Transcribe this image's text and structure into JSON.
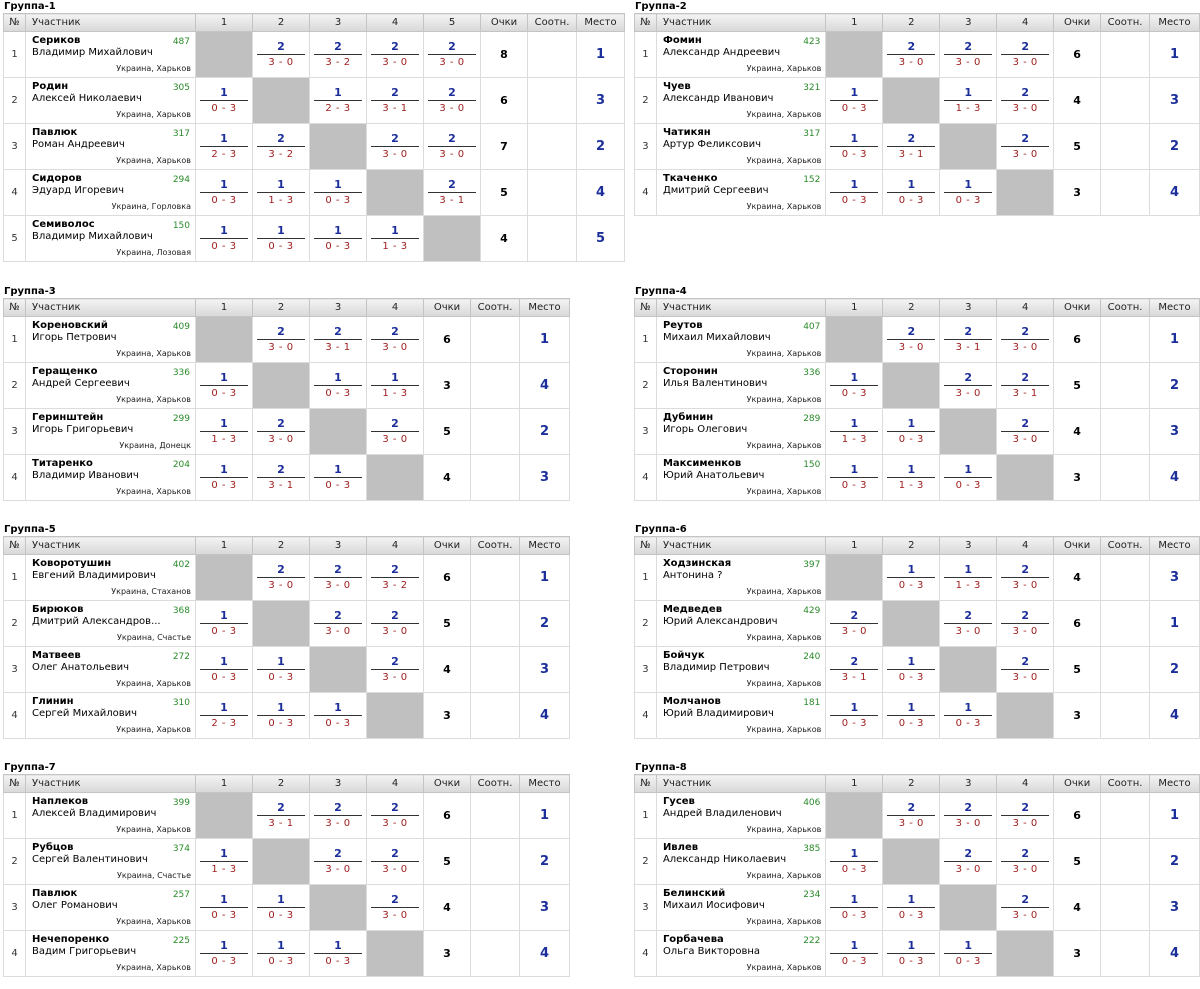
{
  "headers": {
    "num": "№",
    "name": "Участник",
    "points": "Очки",
    "ratio": "Соотн.",
    "place": "Место"
  },
  "groups": [
    {
      "title": "Группа-1",
      "size": 5,
      "players": [
        {
          "n": "1",
          "last": "Сериков",
          "first": "Владимир Михайлович",
          "rating": "487",
          "city": "Украина, Харьков",
          "res": [
            null,
            [
              "2",
              "3 - 0"
            ],
            [
              "2",
              "3 - 2"
            ],
            [
              "2",
              "3 - 0"
            ],
            [
              "2",
              "3 - 0"
            ]
          ],
          "pts": "8",
          "place": "1"
        },
        {
          "n": "2",
          "last": "Родин",
          "first": "Алексей Николаевич",
          "rating": "305",
          "city": "Украина, Харьков",
          "res": [
            [
              "1",
              "0 - 3"
            ],
            null,
            [
              "1",
              "2 - 3"
            ],
            [
              "2",
              "3 - 1"
            ],
            [
              "2",
              "3 - 0"
            ]
          ],
          "pts": "6",
          "place": "3"
        },
        {
          "n": "3",
          "last": "Павлюк",
          "first": "Роман Андреевич",
          "rating": "317",
          "city": "Украина, Харьков",
          "res": [
            [
              "1",
              "2 - 3"
            ],
            [
              "2",
              "3 - 2"
            ],
            null,
            [
              "2",
              "3 - 0"
            ],
            [
              "2",
              "3 - 0"
            ]
          ],
          "pts": "7",
          "place": "2"
        },
        {
          "n": "4",
          "last": "Сидоров",
          "first": "Эдуард Игоревич",
          "rating": "294",
          "city": "Украина, Горловка",
          "res": [
            [
              "1",
              "0 - 3"
            ],
            [
              "1",
              "1 - 3"
            ],
            [
              "1",
              "0 - 3"
            ],
            null,
            [
              "2",
              "3 - 1"
            ]
          ],
          "pts": "5",
          "place": "4"
        },
        {
          "n": "5",
          "last": "Семиволос",
          "first": "Владимир Михайлович",
          "rating": "150",
          "city": "Украина, Лозовая",
          "res": [
            [
              "1",
              "0 - 3"
            ],
            [
              "1",
              "0 - 3"
            ],
            [
              "1",
              "0 - 3"
            ],
            [
              "1",
              "1 - 3"
            ],
            null
          ],
          "pts": "4",
          "place": "5"
        }
      ]
    },
    {
      "title": "Группа-2",
      "size": 4,
      "players": [
        {
          "n": "1",
          "last": "Фомин",
          "first": "Александр Андреевич",
          "rating": "423",
          "city": "Украина, Харьков",
          "res": [
            null,
            [
              "2",
              "3 - 0"
            ],
            [
              "2",
              "3 - 0"
            ],
            [
              "2",
              "3 - 0"
            ]
          ],
          "pts": "6",
          "place": "1"
        },
        {
          "n": "2",
          "last": "Чуев",
          "first": "Александр Иванович",
          "rating": "321",
          "city": "Украина, Харьков",
          "res": [
            [
              "1",
              "0 - 3"
            ],
            null,
            [
              "1",
              "1 - 3"
            ],
            [
              "2",
              "3 - 0"
            ]
          ],
          "pts": "4",
          "place": "3"
        },
        {
          "n": "3",
          "last": "Чатикян",
          "first": "Артур Феликсович",
          "rating": "317",
          "city": "Украина, Харьков",
          "res": [
            [
              "1",
              "0 - 3"
            ],
            [
              "2",
              "3 - 1"
            ],
            null,
            [
              "2",
              "3 - 0"
            ]
          ],
          "pts": "5",
          "place": "2"
        },
        {
          "n": "4",
          "last": "Ткаченко",
          "first": "Дмитрий Сергеевич",
          "rating": "152",
          "city": "Украина, Харьков",
          "res": [
            [
              "1",
              "0 - 3"
            ],
            [
              "1",
              "0 - 3"
            ],
            [
              "1",
              "0 - 3"
            ],
            null
          ],
          "pts": "3",
          "place": "4"
        }
      ]
    },
    {
      "title": "Группа-3",
      "size": 4,
      "players": [
        {
          "n": "1",
          "last": "Кореновский",
          "first": "Игорь Петрович",
          "rating": "409",
          "city": "Украина, Харьков",
          "res": [
            null,
            [
              "2",
              "3 - 0"
            ],
            [
              "2",
              "3 - 1"
            ],
            [
              "2",
              "3 - 0"
            ]
          ],
          "pts": "6",
          "place": "1"
        },
        {
          "n": "2",
          "last": "Геращенко",
          "first": "Андрей Сергеевич",
          "rating": "336",
          "city": "Украина, Харьков",
          "res": [
            [
              "1",
              "0 - 3"
            ],
            null,
            [
              "1",
              "0 - 3"
            ],
            [
              "1",
              "1 - 3"
            ]
          ],
          "pts": "3",
          "place": "4"
        },
        {
          "n": "3",
          "last": "Геринштейн",
          "first": "Игорь Григорьевич",
          "rating": "299",
          "city": "Украина, Донецк",
          "res": [
            [
              "1",
              "1 - 3"
            ],
            [
              "2",
              "3 - 0"
            ],
            null,
            [
              "2",
              "3 - 0"
            ]
          ],
          "pts": "5",
          "place": "2"
        },
        {
          "n": "4",
          "last": "Титаренко",
          "first": "Владимир Иванович",
          "rating": "204",
          "city": "Украина, Харьков",
          "res": [
            [
              "1",
              "0 - 3"
            ],
            [
              "2",
              "3 - 1"
            ],
            [
              "1",
              "0 - 3"
            ],
            null
          ],
          "pts": "4",
          "place": "3"
        }
      ]
    },
    {
      "title": "Группа-4",
      "size": 4,
      "players": [
        {
          "n": "1",
          "last": "Реутов",
          "first": "Михаил Михайлович",
          "rating": "407",
          "city": "Украина, Харьков",
          "res": [
            null,
            [
              "2",
              "3 - 0"
            ],
            [
              "2",
              "3 - 1"
            ],
            [
              "2",
              "3 - 0"
            ]
          ],
          "pts": "6",
          "place": "1"
        },
        {
          "n": "2",
          "last": "Сторонин",
          "first": "Илья Валентинович",
          "rating": "336",
          "city": "Украина, Харьков",
          "res": [
            [
              "1",
              "0 - 3"
            ],
            null,
            [
              "2",
              "3 - 0"
            ],
            [
              "2",
              "3 - 1"
            ]
          ],
          "pts": "5",
          "place": "2"
        },
        {
          "n": "3",
          "last": "Дубинин",
          "first": "Игорь Олегович",
          "rating": "289",
          "city": "Украина, Харьков",
          "res": [
            [
              "1",
              "1 - 3"
            ],
            [
              "1",
              "0 - 3"
            ],
            null,
            [
              "2",
              "3 - 0"
            ]
          ],
          "pts": "4",
          "place": "3"
        },
        {
          "n": "4",
          "last": "Максименков",
          "first": "Юрий Анатольевич",
          "rating": "150",
          "city": "Украина, Харьков",
          "res": [
            [
              "1",
              "0 - 3"
            ],
            [
              "1",
              "1 - 3"
            ],
            [
              "1",
              "0 - 3"
            ],
            null
          ],
          "pts": "3",
          "place": "4"
        }
      ]
    },
    {
      "title": "Группа-5",
      "size": 4,
      "players": [
        {
          "n": "1",
          "last": "Коворотушин",
          "first": "Евгений Владимирович",
          "rating": "402",
          "city": "Украина, Стаханов",
          "res": [
            null,
            [
              "2",
              "3 - 0"
            ],
            [
              "2",
              "3 - 0"
            ],
            [
              "2",
              "3 - 2"
            ]
          ],
          "pts": "6",
          "place": "1"
        },
        {
          "n": "2",
          "last": "Бирюков",
          "first": "Дмитрий Александров...",
          "rating": "368",
          "city": "Украина, Счастье",
          "res": [
            [
              "1",
              "0 - 3"
            ],
            null,
            [
              "2",
              "3 - 0"
            ],
            [
              "2",
              "3 - 0"
            ]
          ],
          "pts": "5",
          "place": "2"
        },
        {
          "n": "3",
          "last": "Матвеев",
          "first": "Олег Анатольевич",
          "rating": "272",
          "city": "Украина, Харьков",
          "res": [
            [
              "1",
              "0 - 3"
            ],
            [
              "1",
              "0 - 3"
            ],
            null,
            [
              "2",
              "3 - 0"
            ]
          ],
          "pts": "4",
          "place": "3"
        },
        {
          "n": "4",
          "last": "Глинин",
          "first": "Сергей Михайлович",
          "rating": "310",
          "city": "Украина, Харьков",
          "res": [
            [
              "1",
              "2 - 3"
            ],
            [
              "1",
              "0 - 3"
            ],
            [
              "1",
              "0 - 3"
            ],
            null
          ],
          "pts": "3",
          "place": "4"
        }
      ]
    },
    {
      "title": "Группа-6",
      "size": 4,
      "players": [
        {
          "n": "1",
          "last": "Ходзинская",
          "first": "Антонина ?",
          "rating": "397",
          "city": "Украина, Харьков",
          "res": [
            null,
            [
              "1",
              "0 - 3"
            ],
            [
              "1",
              "1 - 3"
            ],
            [
              "2",
              "3 - 0"
            ]
          ],
          "pts": "4",
          "place": "3"
        },
        {
          "n": "2",
          "last": "Медведев",
          "first": "Юрий Александрович",
          "rating": "429",
          "city": "Украина, Харьков",
          "res": [
            [
              "2",
              "3 - 0"
            ],
            null,
            [
              "2",
              "3 - 0"
            ],
            [
              "2",
              "3 - 0"
            ]
          ],
          "pts": "6",
          "place": "1"
        },
        {
          "n": "3",
          "last": "Бойчук",
          "first": "Владимир Петрович",
          "rating": "240",
          "city": "Украина, Харьков",
          "res": [
            [
              "2",
              "3 - 1"
            ],
            [
              "1",
              "0 - 3"
            ],
            null,
            [
              "2",
              "3 - 0"
            ]
          ],
          "pts": "5",
          "place": "2"
        },
        {
          "n": "4",
          "last": "Молчанов",
          "first": "Юрий Владимирович",
          "rating": "181",
          "city": "Украина, Харьков",
          "res": [
            [
              "1",
              "0 - 3"
            ],
            [
              "1",
              "0 - 3"
            ],
            [
              "1",
              "0 - 3"
            ],
            null
          ],
          "pts": "3",
          "place": "4"
        }
      ]
    },
    {
      "title": "Группа-7",
      "size": 4,
      "players": [
        {
          "n": "1",
          "last": "Наплеков",
          "first": "Алексей Владимирович",
          "rating": "399",
          "city": "Украина, Харьков",
          "res": [
            null,
            [
              "2",
              "3 - 1"
            ],
            [
              "2",
              "3 - 0"
            ],
            [
              "2",
              "3 - 0"
            ]
          ],
          "pts": "6",
          "place": "1"
        },
        {
          "n": "2",
          "last": "Рубцов",
          "first": "Сергей Валентинович",
          "rating": "374",
          "city": "Украина, Счастье",
          "res": [
            [
              "1",
              "1 - 3"
            ],
            null,
            [
              "2",
              "3 - 0"
            ],
            [
              "2",
              "3 - 0"
            ]
          ],
          "pts": "5",
          "place": "2"
        },
        {
          "n": "3",
          "last": "Павлюк",
          "first": "Олег Романович",
          "rating": "257",
          "city": "Украина, Харьков",
          "res": [
            [
              "1",
              "0 - 3"
            ],
            [
              "1",
              "0 - 3"
            ],
            null,
            [
              "2",
              "3 - 0"
            ]
          ],
          "pts": "4",
          "place": "3"
        },
        {
          "n": "4",
          "last": "Нечепоренко",
          "first": "Вадим Григорьевич",
          "rating": "225",
          "city": "Украина, Харьков",
          "res": [
            [
              "1",
              "0 - 3"
            ],
            [
              "1",
              "0 - 3"
            ],
            [
              "1",
              "0 - 3"
            ],
            null
          ],
          "pts": "3",
          "place": "4"
        }
      ]
    },
    {
      "title": "Группа-8",
      "size": 4,
      "players": [
        {
          "n": "1",
          "last": "Гусев",
          "first": "Андрей Владиленович",
          "rating": "406",
          "city": "Украина, Харьков",
          "res": [
            null,
            [
              "2",
              "3 - 0"
            ],
            [
              "2",
              "3 - 0"
            ],
            [
              "2",
              "3 - 0"
            ]
          ],
          "pts": "6",
          "place": "1"
        },
        {
          "n": "2",
          "last": "Ивлев",
          "first": "Александр Николаевич",
          "rating": "385",
          "city": "Украина, Харьков",
          "res": [
            [
              "1",
              "0 - 3"
            ],
            null,
            [
              "2",
              "3 - 0"
            ],
            [
              "2",
              "3 - 0"
            ]
          ],
          "pts": "5",
          "place": "2"
        },
        {
          "n": "3",
          "last": "Белинский",
          "first": "Михаил Иосифович",
          "rating": "234",
          "city": "Украина, Харьков",
          "res": [
            [
              "1",
              "0 - 3"
            ],
            [
              "1",
              "0 - 3"
            ],
            null,
            [
              "2",
              "3 - 0"
            ]
          ],
          "pts": "4",
          "place": "3"
        },
        {
          "n": "4",
          "last": "Горбачева",
          "first": "Ольга Викторовна",
          "rating": "222",
          "city": "Украина, Харьков",
          "res": [
            [
              "1",
              "0 - 3"
            ],
            [
              "1",
              "0 - 3"
            ],
            [
              "1",
              "0 - 3"
            ],
            null
          ],
          "pts": "3",
          "place": "4"
        }
      ]
    }
  ]
}
